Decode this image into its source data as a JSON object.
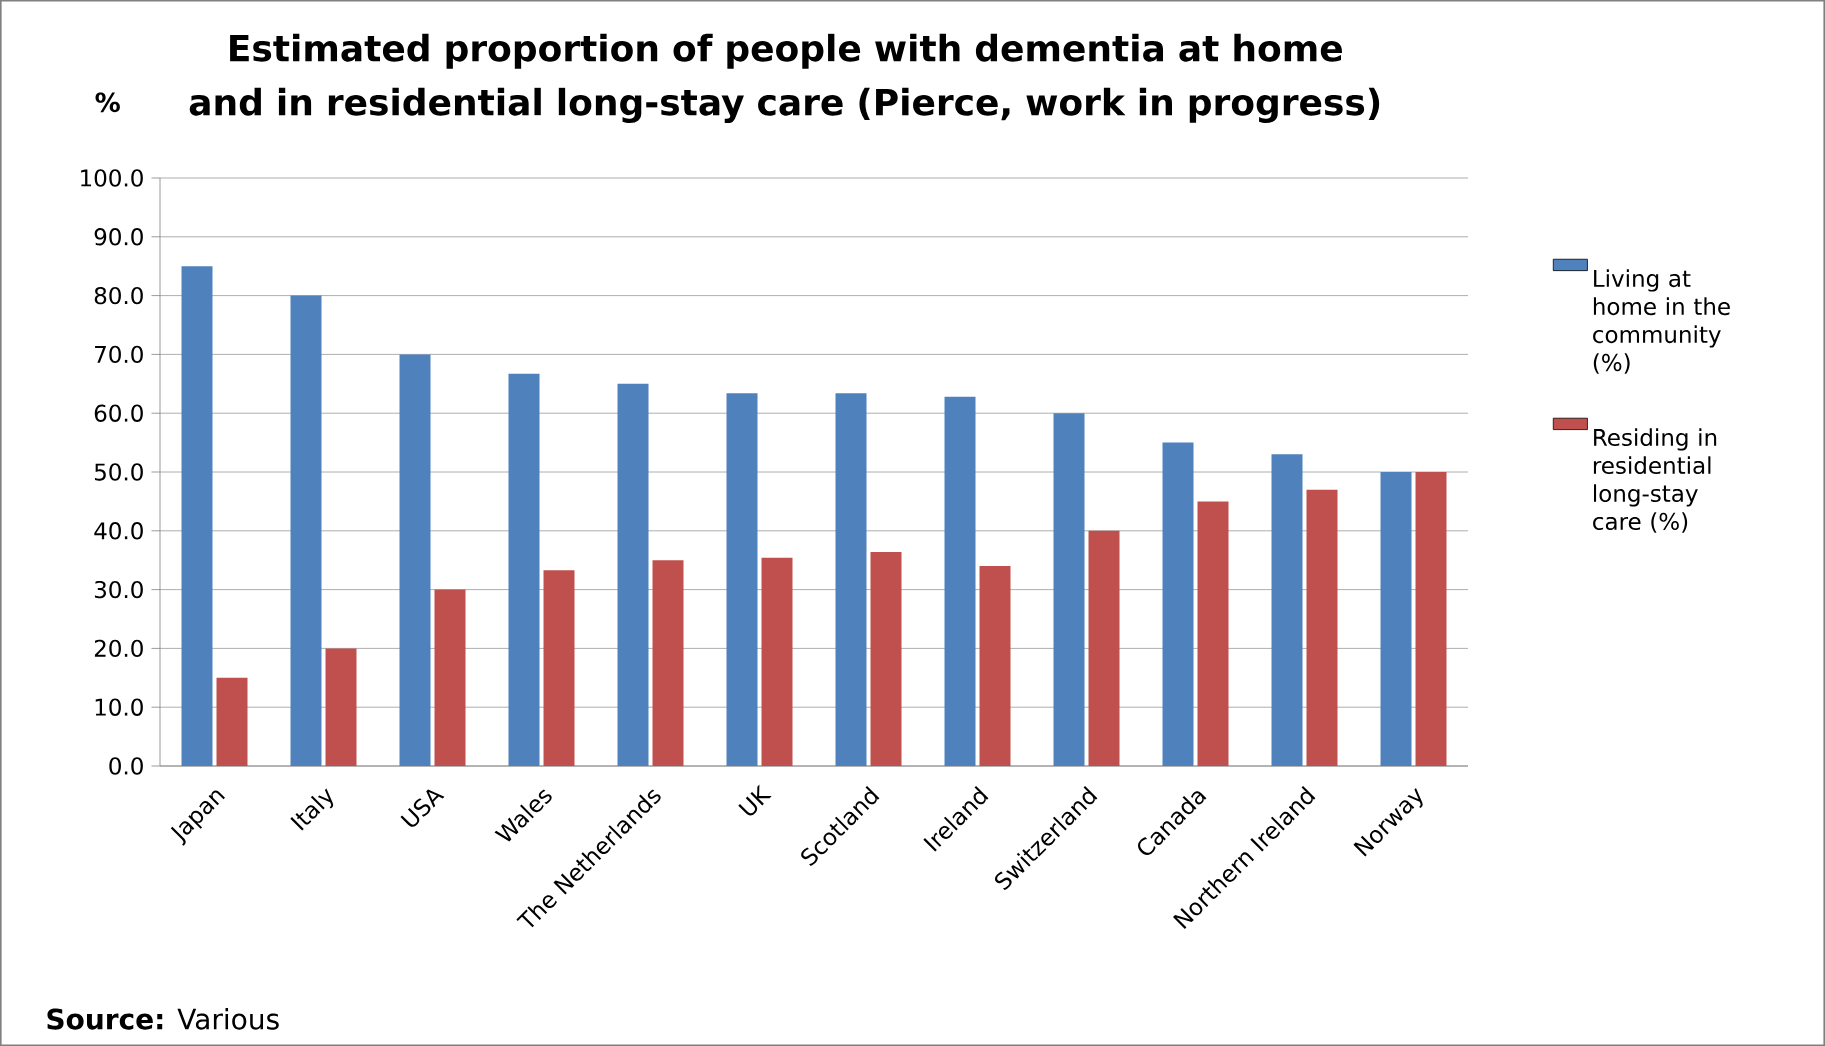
{
  "chart_data": {
    "type": "bar",
    "title": "Estimated proportion of people with dementia at home and in residential long-stay care (Pierce, work in progress)",
    "ylabel": "%",
    "categories": [
      "Japan",
      "Italy",
      "USA",
      "Wales",
      "The Netherlands",
      "UK",
      "Scotland",
      "Ireland",
      "Switzerland",
      "Canada",
      "Northern Ireland",
      "Norway"
    ],
    "series": [
      {
        "name": "Living at home in the community (%)",
        "color": "#4f81bd",
        "values": [
          85,
          80,
          70,
          66.7,
          65,
          63.4,
          63.4,
          62.8,
          60,
          55,
          53,
          50
        ]
      },
      {
        "name": "Residing in residential long-stay care (%)",
        "color": "#c0504d",
        "values": [
          15,
          20,
          30,
          33.3,
          35,
          35.4,
          36.4,
          34,
          40,
          45,
          47,
          50
        ]
      }
    ],
    "ylim": [
      0,
      100
    ],
    "yticks": [
      {
        "value": 0,
        "label": "0.0"
      },
      {
        "value": 10,
        "label": "10.0"
      },
      {
        "value": 20,
        "label": "20.0"
      },
      {
        "value": 30,
        "label": "30.0"
      },
      {
        "value": 40,
        "label": "40.0"
      },
      {
        "value": 50,
        "label": "50.0"
      },
      {
        "value": 60,
        "label": "60.0"
      },
      {
        "value": 70,
        "label": "70.0"
      },
      {
        "value": 80,
        "label": "80.0"
      },
      {
        "value": 90,
        "label": "90.0"
      },
      {
        "value": 100,
        "label": "100.0"
      }
    ],
    "grid": "y",
    "legend": "right",
    "annotations": [
      "**Source:** Various"
    ]
  }
}
